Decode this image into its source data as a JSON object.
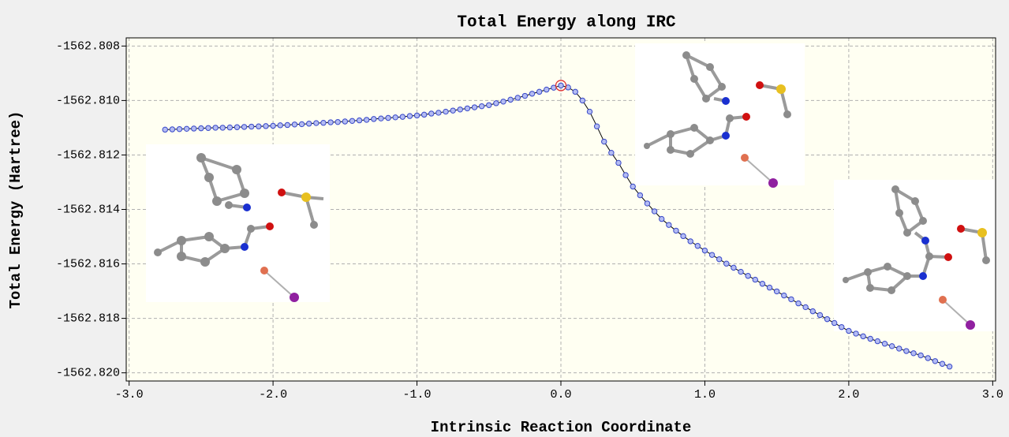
{
  "chart_data": {
    "type": "line",
    "title": "Total Energy along IRC",
    "xlabel": "Intrinsic Reaction Coordinate",
    "ylabel": "Total Energy (Hartree)",
    "x": [
      -2.75,
      -2.7,
      -2.65,
      -2.6,
      -2.55,
      -2.5,
      -2.45,
      -2.4,
      -2.35,
      -2.3,
      -2.25,
      -2.2,
      -2.15,
      -2.1,
      -2.05,
      -2.0,
      -1.95,
      -1.9,
      -1.85,
      -1.8,
      -1.75,
      -1.7,
      -1.65,
      -1.6,
      -1.55,
      -1.5,
      -1.45,
      -1.4,
      -1.35,
      -1.3,
      -1.25,
      -1.2,
      -1.15,
      -1.1,
      -1.05,
      -1.0,
      -0.95,
      -0.9,
      -0.85,
      -0.8,
      -0.75,
      -0.7,
      -0.65,
      -0.6,
      -0.55,
      -0.5,
      -0.45,
      -0.4,
      -0.35,
      -0.3,
      -0.25,
      -0.2,
      -0.15,
      -0.1,
      -0.05,
      0.0,
      0.05,
      0.1,
      0.15,
      0.2,
      0.25,
      0.3,
      0.35,
      0.4,
      0.45,
      0.5,
      0.55,
      0.6,
      0.65,
      0.7,
      0.75,
      0.8,
      0.85,
      0.9,
      0.95,
      1.0,
      1.05,
      1.1,
      1.15,
      1.2,
      1.25,
      1.3,
      1.35,
      1.4,
      1.45,
      1.5,
      1.55,
      1.6,
      1.65,
      1.7,
      1.75,
      1.8,
      1.85,
      1.9,
      1.95,
      2.0,
      2.05,
      2.1,
      2.15,
      2.2,
      2.25,
      2.3,
      2.35,
      2.4,
      2.45,
      2.5,
      2.55,
      2.6,
      2.65,
      2.7
    ],
    "values": [
      -1562.81107,
      -1562.81106,
      -1562.81105,
      -1562.81104,
      -1562.81103,
      -1562.81102,
      -1562.81101,
      -1562.811,
      -1562.811,
      -1562.81099,
      -1562.81098,
      -1562.81097,
      -1562.81096,
      -1562.81095,
      -1562.81094,
      -1562.81093,
      -1562.81091,
      -1562.8109,
      -1562.81088,
      -1562.81087,
      -1562.81085,
      -1562.81083,
      -1562.81082,
      -1562.8108,
      -1562.81079,
      -1562.81077,
      -1562.81075,
      -1562.81073,
      -1562.81071,
      -1562.81068,
      -1562.81066,
      -1562.81064,
      -1562.81062,
      -1562.8106,
      -1562.81057,
      -1562.81055,
      -1562.81052,
      -1562.81048,
      -1562.81045,
      -1562.81041,
      -1562.81037,
      -1562.81033,
      -1562.81029,
      -1562.81025,
      -1562.81021,
      -1562.81017,
      -1562.8101,
      -1562.81004,
      -1562.80997,
      -1562.8099,
      -1562.80983,
      -1562.80975,
      -1562.80968,
      -1562.8096,
      -1562.80953,
      -1562.80945,
      -1562.80952,
      -1562.80968,
      -1562.81,
      -1562.81041,
      -1562.81095,
      -1562.81151,
      -1562.81192,
      -1562.81229,
      -1562.81274,
      -1562.81316,
      -1562.81348,
      -1562.81378,
      -1562.81407,
      -1562.81435,
      -1562.81457,
      -1562.81478,
      -1562.81498,
      -1562.81517,
      -1562.81534,
      -1562.81551,
      -1562.81567,
      -1562.81583,
      -1562.81599,
      -1562.81614,
      -1562.81629,
      -1562.81644,
      -1562.81658,
      -1562.81673,
      -1562.81687,
      -1562.81701,
      -1562.81716,
      -1562.8173,
      -1562.81745,
      -1562.81759,
      -1562.81774,
      -1562.81788,
      -1562.81803,
      -1562.81817,
      -1562.81832,
      -1562.81846,
      -1562.81856,
      -1562.81866,
      -1562.81875,
      -1562.81884,
      -1562.81893,
      -1562.81902,
      -1562.81911,
      -1562.8192,
      -1562.81928,
      -1562.81936,
      -1562.81946,
      -1562.81957,
      -1562.81967,
      -1562.81977
    ],
    "line_color": "#000000",
    "marker_fill": "#b4bcf2",
    "marker_edge": "#3848c8",
    "highlight_color": "#e03030",
    "xlim": [
      -3.02,
      3.02
    ],
    "ylim": [
      -1562.8203,
      -1562.8077
    ],
    "xticks": [
      {
        "value": -3.0,
        "label": "-3.0"
      },
      {
        "value": -2.0,
        "label": "-2.0"
      },
      {
        "value": -1.0,
        "label": "-1.0"
      },
      {
        "value": 0.0,
        "label": "0.0"
      },
      {
        "value": 1.0,
        "label": "1.0"
      },
      {
        "value": 2.0,
        "label": "2.0"
      },
      {
        "value": 3.0,
        "label": "3.0"
      }
    ],
    "yticks": [
      -1562.808,
      {
        "value": -1562.81,
        "label": "-1562.810"
      },
      -1562.812,
      -1562.814,
      -1562.816,
      -1562.818,
      {
        "value": -1562.82,
        "label": "-1562.820"
      }
    ],
    "grid": true,
    "background": "#fffff2"
  }
}
